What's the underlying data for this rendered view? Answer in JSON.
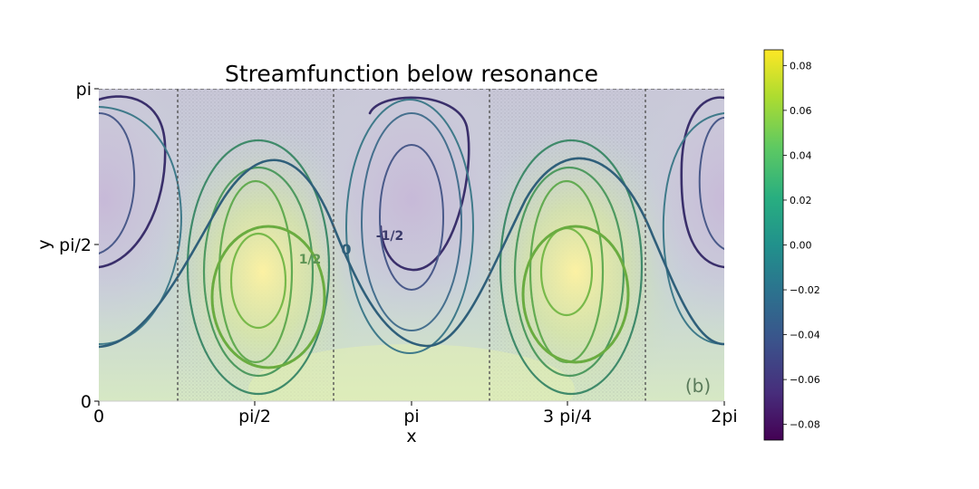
{
  "chart_data": {
    "type": "heatmap",
    "title": "Streamfunction below resonance",
    "xlabel": "x",
    "ylabel": "y",
    "x_ticks": [
      "0",
      "pi/2",
      "pi",
      "3 pi/4",
      "2pi"
    ],
    "y_ticks": [
      "0",
      "pi/2",
      "pi"
    ],
    "xlim": [
      0,
      6.283
    ],
    "ylim": [
      0,
      3.1416
    ],
    "colormap": "viridis",
    "colorbar": {
      "ticks": [
        "0.08",
        "0.06",
        "0.04",
        "0.02",
        "0.00",
        "−0.02",
        "−0.04",
        "−0.06",
        "−0.08"
      ],
      "tick_values": [
        0.08,
        0.06,
        0.04,
        0.02,
        0.0,
        -0.02,
        -0.04,
        -0.06,
        -0.08
      ],
      "range": [
        -0.087,
        0.087
      ]
    },
    "field": "psi(x,y) ~ 0.087 * sin(x) * sin(y) (peaks near (pi/2, 1.2) and (3pi/2, 1.2))",
    "annotations": [
      "1/2",
      "0",
      "-1/2",
      "(b)"
    ]
  }
}
